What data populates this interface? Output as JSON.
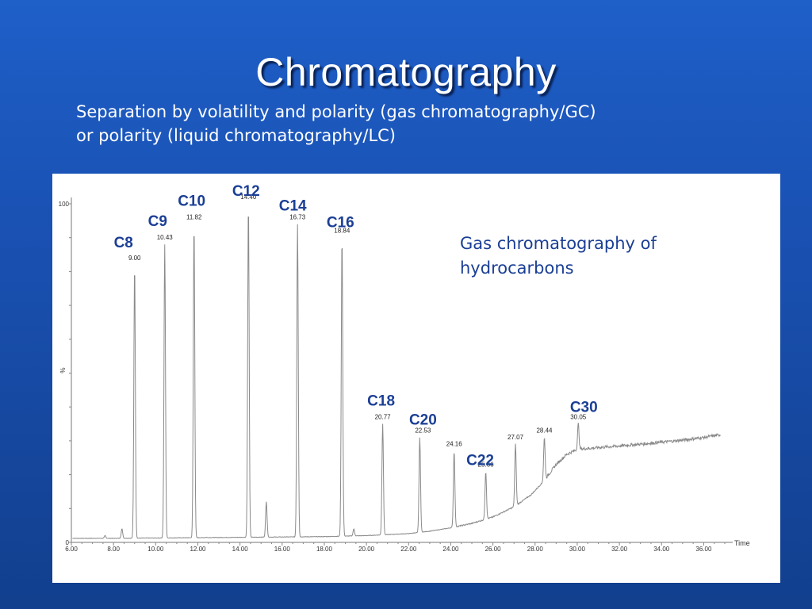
{
  "slide": {
    "title": "Chromatography",
    "subtitle_line1": "Separation by volatility and polarity (gas chromatography/GC)",
    "subtitle_line2": "or polarity (liquid chromatography/LC)"
  },
  "colors": {
    "background": "#1a52b4",
    "trace": "#8a8a8a",
    "peak_label": "#1b3f95"
  },
  "chart_data": {
    "type": "line",
    "title": "",
    "annotation": "Gas chromatography of hydrocarbons",
    "xlabel": "Time",
    "ylabel": "%",
    "xlim": [
      6.0,
      37.0
    ],
    "ylim": [
      0,
      100
    ],
    "x_ticks": [
      "6.00",
      "8.00",
      "10.00",
      "12.00",
      "14.00",
      "16.00",
      "18.00",
      "20.00",
      "22.00",
      "24.00",
      "26.00",
      "28.00",
      "30.00",
      "32.00",
      "34.00",
      "36.00"
    ],
    "y_ticks": [
      "0",
      "100"
    ],
    "grid": false,
    "peaks": [
      {
        "compound": "C8",
        "time": 9.0,
        "time_label": "9.00",
        "height": 82
      },
      {
        "compound": "C9",
        "time": 10.43,
        "time_label": "10.43",
        "height": 88
      },
      {
        "compound": "C10",
        "time": 11.82,
        "time_label": "11.82",
        "height": 94
      },
      {
        "compound": "C12",
        "time": 14.4,
        "time_label": "14.40",
        "height": 100
      },
      {
        "compound": "C14",
        "time": 16.73,
        "time_label": "16.73",
        "height": 94
      },
      {
        "compound": "C16",
        "time": 18.84,
        "time_label": "18.84",
        "height": 90
      },
      {
        "compound": "C18",
        "time": 20.77,
        "time_label": "20.77",
        "height": 35
      },
      {
        "compound": "C20",
        "time": 22.53,
        "time_label": "22.53",
        "height": 31
      },
      {
        "compound": "",
        "time": 24.16,
        "time_label": "24.16",
        "height": 27
      },
      {
        "compound": "C22",
        "time": 25.66,
        "time_label": "25.66",
        "height": 21
      },
      {
        "compound": "",
        "time": 27.07,
        "time_label": "27.07",
        "height": 29
      },
      {
        "compound": "",
        "time": 28.44,
        "time_label": "28.44",
        "height": 31
      },
      {
        "compound": "C30",
        "time": 30.05,
        "time_label": "30.05",
        "height": 35
      }
    ],
    "minor_peaks": [
      {
        "time": 7.6,
        "height": 2
      },
      {
        "time": 8.4,
        "height": 4
      },
      {
        "time": 12.4,
        "height": 1.5
      },
      {
        "time": 15.25,
        "height": 12
      },
      {
        "time": 18.9,
        "height": 3
      },
      {
        "time": 19.4,
        "height": 4
      }
    ],
    "baseline": [
      [
        6.0,
        1.2
      ],
      [
        8.0,
        1.2
      ],
      [
        10.0,
        1.3
      ],
      [
        12.0,
        1.4
      ],
      [
        14.0,
        1.5
      ],
      [
        16.0,
        1.6
      ],
      [
        18.0,
        1.7
      ],
      [
        20.0,
        2.0
      ],
      [
        22.0,
        2.6
      ],
      [
        23.0,
        3.3
      ],
      [
        24.0,
        4.3
      ],
      [
        25.0,
        5.6
      ],
      [
        26.0,
        7.5
      ],
      [
        27.0,
        10.5
      ],
      [
        27.8,
        14.0
      ],
      [
        28.4,
        18.0
      ],
      [
        29.0,
        23.0
      ],
      [
        29.5,
        26.0
      ],
      [
        30.0,
        27.5
      ],
      [
        31.0,
        28.0
      ],
      [
        32.0,
        28.5
      ],
      [
        33.0,
        29.0
      ],
      [
        34.0,
        29.6
      ],
      [
        35.0,
        30.2
      ],
      [
        36.0,
        31.0
      ],
      [
        37.0,
        32.0
      ]
    ]
  }
}
